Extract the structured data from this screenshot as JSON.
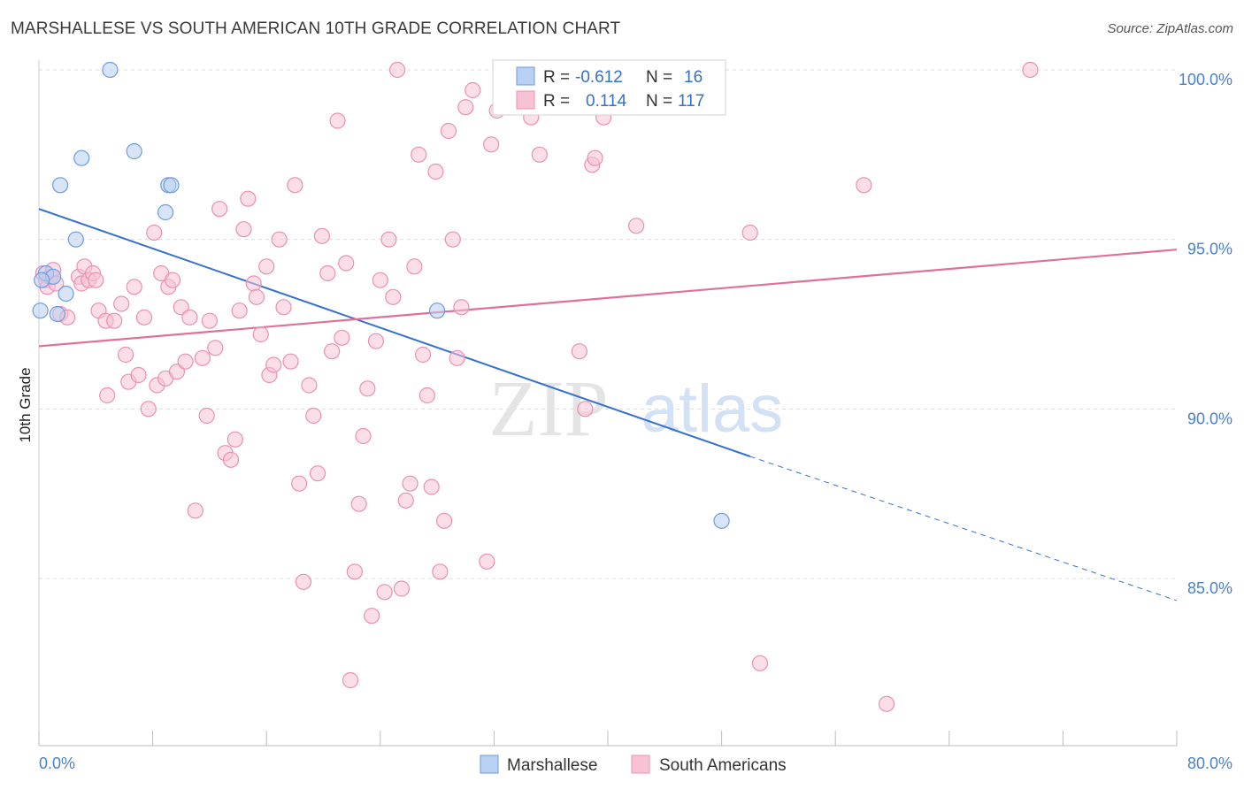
{
  "title": "MARSHALLESE VS SOUTH AMERICAN 10TH GRADE CORRELATION CHART",
  "source": "Source: ZipAtlas.com",
  "watermark": {
    "zip": "ZIP",
    "atlas": "atlas"
  },
  "colors": {
    "marshallese_fill": "#b8d0f2",
    "marshallese_stroke": "#6d9be0",
    "marshallese_line": "#3370d0",
    "south_fill": "#f7c3d4",
    "south_stroke": "#ea90b0",
    "south_line": "#e07098",
    "tick_text": "#4a7fd0",
    "grid": "#dcdcdc"
  },
  "legend": {
    "r_label": "R =",
    "n_label": "N =",
    "marshallese_r": "-0.612",
    "marshallese_n": "16",
    "south_r": "0.114",
    "south_n": "117"
  },
  "bottom_legend": [
    "Marshallese",
    "South Americans"
  ],
  "chart_data": {
    "type": "scatter",
    "title": "MARSHALLESE VS SOUTH AMERICAN 10TH GRADE CORRELATION CHART",
    "xlabel": "",
    "ylabel": "10th Grade",
    "xlim": [
      0,
      80
    ],
    "ylim": [
      80.5,
      101.0
    ],
    "x_tick_labels": [
      "0.0%",
      "80.0%"
    ],
    "y_ticks": [
      85,
      90,
      95,
      100
    ],
    "y_tick_labels": [
      "85.0%",
      "90.0%",
      "95.0%",
      "100.0%"
    ],
    "grid": true,
    "legend_position": "top-center",
    "series": [
      {
        "name": "Marshallese",
        "r": -0.612,
        "n": 16,
        "trend": {
          "x0": 0,
          "y0": 95.9,
          "x1": 50,
          "y1": 88.6,
          "dashed_to_x": 80,
          "dashed_to_y": 84.35
        },
        "points": [
          [
            5.0,
            100.0
          ],
          [
            1.5,
            96.6
          ],
          [
            3.0,
            97.4
          ],
          [
            6.7,
            97.6
          ],
          [
            8.9,
            95.8
          ],
          [
            9.1,
            96.6
          ],
          [
            9.3,
            96.6
          ],
          [
            2.6,
            95.0
          ],
          [
            0.5,
            94.0
          ],
          [
            1.0,
            93.9
          ],
          [
            1.9,
            93.4
          ],
          [
            0.1,
            92.9
          ],
          [
            1.3,
            92.8
          ],
          [
            28.0,
            92.9
          ],
          [
            48.0,
            86.7
          ],
          [
            0.2,
            93.8
          ]
        ]
      },
      {
        "name": "South Americans",
        "r": 0.114,
        "n": 117,
        "trend": {
          "x0": 0,
          "y0": 91.85,
          "x1": 80,
          "y1": 94.7
        },
        "points": [
          [
            0.3,
            94.0
          ],
          [
            0.5,
            93.8
          ],
          [
            0.6,
            93.6
          ],
          [
            0.8,
            93.9
          ],
          [
            1.0,
            94.1
          ],
          [
            1.2,
            93.7
          ],
          [
            1.5,
            92.8
          ],
          [
            2.0,
            92.7
          ],
          [
            2.8,
            93.9
          ],
          [
            3.0,
            93.7
          ],
          [
            3.2,
            94.2
          ],
          [
            3.5,
            93.8
          ],
          [
            3.8,
            94.0
          ],
          [
            4.0,
            93.8
          ],
          [
            4.2,
            92.9
          ],
          [
            4.7,
            92.6
          ],
          [
            4.8,
            90.4
          ],
          [
            5.3,
            92.6
          ],
          [
            5.8,
            93.1
          ],
          [
            6.1,
            91.6
          ],
          [
            6.3,
            90.8
          ],
          [
            6.7,
            93.6
          ],
          [
            7.0,
            91.0
          ],
          [
            7.4,
            92.7
          ],
          [
            7.7,
            90.0
          ],
          [
            8.1,
            95.2
          ],
          [
            8.3,
            90.7
          ],
          [
            8.6,
            94.0
          ],
          [
            8.9,
            90.9
          ],
          [
            9.1,
            93.6
          ],
          [
            9.4,
            93.8
          ],
          [
            9.7,
            91.1
          ],
          [
            10.0,
            93.0
          ],
          [
            10.3,
            91.4
          ],
          [
            10.6,
            92.7
          ],
          [
            11.0,
            87.0
          ],
          [
            11.5,
            91.5
          ],
          [
            11.8,
            89.8
          ],
          [
            12.0,
            92.6
          ],
          [
            12.4,
            91.8
          ],
          [
            12.7,
            95.9
          ],
          [
            13.1,
            88.7
          ],
          [
            13.5,
            88.5
          ],
          [
            13.8,
            89.1
          ],
          [
            14.1,
            92.9
          ],
          [
            14.4,
            95.3
          ],
          [
            14.7,
            96.2
          ],
          [
            15.1,
            93.7
          ],
          [
            15.3,
            93.3
          ],
          [
            15.6,
            92.2
          ],
          [
            16.0,
            94.2
          ],
          [
            16.2,
            91.0
          ],
          [
            16.5,
            91.3
          ],
          [
            16.9,
            95.0
          ],
          [
            17.2,
            93.0
          ],
          [
            17.7,
            91.4
          ],
          [
            18.0,
            96.6
          ],
          [
            18.3,
            87.8
          ],
          [
            18.6,
            84.9
          ],
          [
            19.0,
            90.7
          ],
          [
            19.3,
            89.8
          ],
          [
            19.6,
            88.1
          ],
          [
            19.9,
            95.1
          ],
          [
            20.3,
            94.0
          ],
          [
            20.6,
            91.7
          ],
          [
            21.0,
            98.5
          ],
          [
            21.3,
            92.1
          ],
          [
            21.6,
            94.3
          ],
          [
            21.9,
            82.0
          ],
          [
            22.2,
            85.2
          ],
          [
            22.5,
            87.2
          ],
          [
            22.8,
            89.2
          ],
          [
            23.1,
            90.6
          ],
          [
            23.4,
            83.9
          ],
          [
            23.7,
            92.0
          ],
          [
            24.0,
            93.8
          ],
          [
            24.3,
            84.6
          ],
          [
            24.6,
            95.0
          ],
          [
            24.9,
            93.3
          ],
          [
            25.2,
            100.0
          ],
          [
            25.5,
            84.7
          ],
          [
            25.8,
            87.3
          ],
          [
            26.1,
            87.8
          ],
          [
            26.4,
            94.2
          ],
          [
            26.7,
            97.5
          ],
          [
            27.0,
            91.6
          ],
          [
            27.3,
            90.4
          ],
          [
            27.6,
            87.7
          ],
          [
            27.9,
            97.0
          ],
          [
            28.2,
            85.2
          ],
          [
            28.5,
            86.7
          ],
          [
            28.8,
            98.2
          ],
          [
            29.1,
            95.0
          ],
          [
            29.4,
            91.5
          ],
          [
            29.7,
            93.0
          ],
          [
            30.0,
            98.9
          ],
          [
            30.5,
            99.4
          ],
          [
            31.5,
            85.5
          ],
          [
            31.8,
            97.8
          ],
          [
            32.2,
            98.8
          ],
          [
            32.7,
            100.0
          ],
          [
            34.6,
            98.6
          ],
          [
            35.2,
            97.5
          ],
          [
            35.8,
            99.6
          ],
          [
            37.0,
            99.9
          ],
          [
            38.3,
            100.0
          ],
          [
            38.9,
            97.2
          ],
          [
            39.1,
            97.4
          ],
          [
            39.7,
            98.6
          ],
          [
            42.0,
            95.4
          ],
          [
            38.0,
            91.7
          ],
          [
            38.4,
            90.0
          ],
          [
            50.0,
            95.2
          ],
          [
            50.7,
            82.5
          ],
          [
            58.0,
            96.6
          ],
          [
            59.6,
            81.3
          ],
          [
            69.7,
            100.0
          ]
        ]
      }
    ]
  }
}
